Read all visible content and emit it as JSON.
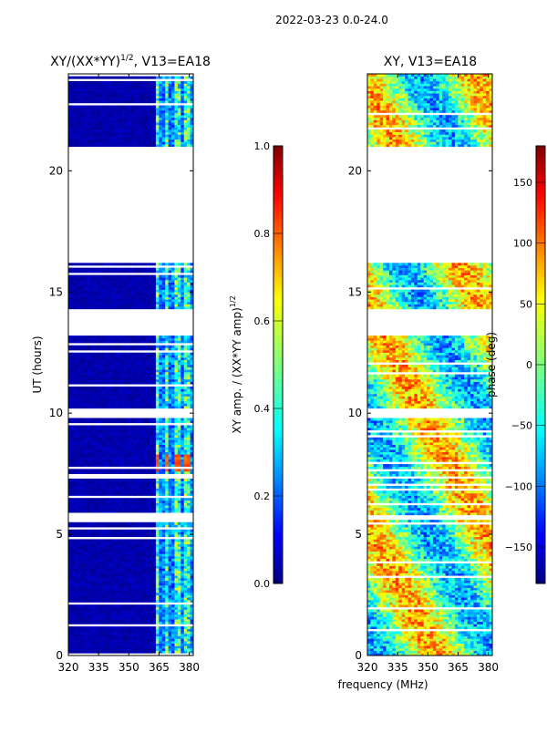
{
  "suptitle": "2022-03-23 0.0-24.0",
  "colors": {
    "low": "#00008f",
    "gap": "#ffffff"
  },
  "chart_data": [
    {
      "type": "heatmap",
      "title_main": "XY/(XX*YY)",
      "title_sup": "1/2",
      "title_tail": ", V13=EA18",
      "xlabel": "",
      "ylabel": "UT (hours)",
      "xlim": [
        320,
        382
      ],
      "ylim": [
        0,
        24
      ],
      "xticks": [
        320,
        335,
        350,
        365,
        380
      ],
      "yticks": [
        0,
        5,
        10,
        15,
        20
      ],
      "colorbar": {
        "label_main": "XY amp. / (XX*YY amp)",
        "label_sup": "1/2",
        "range": [
          0.0,
          1.0
        ],
        "ticks": [
          "0.0",
          "0.2",
          "0.4",
          "0.6",
          "0.8",
          "1.0"
        ],
        "tick_values": [
          0.0,
          0.2,
          0.4,
          0.6,
          0.8,
          1.0
        ]
      },
      "data_blocks_ut": [
        [
          0.0,
          5.6
        ],
        [
          5.8,
          9.8
        ],
        [
          10.2,
          13.2
        ],
        [
          14.3,
          16.2
        ],
        [
          21.0,
          24.0
        ]
      ],
      "flagged_ut": [
        [
          16.2,
          21.0
        ]
      ],
      "active_band_mhz": [
        362,
        382
      ],
      "peak_value": 0.85
    },
    {
      "type": "heatmap",
      "title": "XY, V13=EA18",
      "xlabel": "frequency (MHz)",
      "ylabel": "",
      "xlim": [
        320,
        382
      ],
      "ylim": [
        0,
        24
      ],
      "xticks": [
        320,
        335,
        350,
        365,
        380
      ],
      "yticks": [
        0,
        5,
        10,
        15,
        20
      ],
      "colorbar": {
        "label": "phase (deg)",
        "range": [
          -180,
          180
        ],
        "ticks": [
          "150",
          "100",
          "50",
          "0",
          "−50",
          "−100",
          "−150"
        ],
        "tick_values": [
          150,
          100,
          50,
          0,
          -50,
          -100,
          -150
        ]
      },
      "data_blocks_ut": [
        [
          0.0,
          5.6
        ],
        [
          5.8,
          9.8
        ],
        [
          10.2,
          13.2
        ],
        [
          14.3,
          16.2
        ],
        [
          21.0,
          24.0
        ]
      ],
      "flagged_ut": [
        [
          16.2,
          21.0
        ]
      ]
    }
  ]
}
